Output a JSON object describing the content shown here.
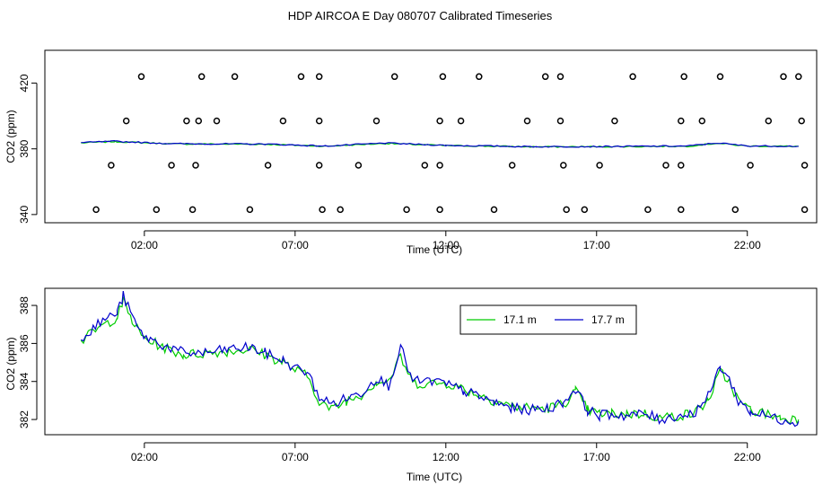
{
  "figure": {
    "title": "HDP AIRCOA E  Day 080707  Calibrated Timeseries",
    "colors": {
      "green": "#00cc00",
      "blue": "#0000cc",
      "black": "#000000"
    }
  },
  "chart_data": [
    {
      "type": "line+scatter",
      "xlabel": "Time (UTC)",
      "ylabel": "CO2 (ppm)",
      "xlim": [
        -1.3,
        24.3
      ],
      "ylim": [
        335,
        440
      ],
      "x_ticks": [
        2,
        7,
        12,
        17,
        22
      ],
      "x_tick_labels": [
        "02:00",
        "07:00",
        "12:00",
        "17:00",
        "22:00"
      ],
      "y_ticks": [
        340,
        380,
        420
      ],
      "y_tick_labels": [
        "340",
        "380",
        "420"
      ],
      "series": [
        {
          "color": "#00cc00",
          "line": [
            [
              -0.1,
              383.6
            ],
            [
              1.0,
              384.4
            ],
            [
              3.0,
              383.0
            ],
            [
              6.0,
              382.8
            ],
            [
              8.0,
              381.6
            ],
            [
              10.0,
              383.3
            ],
            [
              12.0,
              382.0
            ],
            [
              15.0,
              381.2
            ],
            [
              17.0,
              381.3
            ],
            [
              20.0,
              381.6
            ],
            [
              21.0,
              383.4
            ],
            [
              22.0,
              381.7
            ],
            [
              23.7,
              381.5
            ]
          ]
        },
        {
          "color": "#0000cc",
          "line": [
            [
              -0.1,
              383.8
            ],
            [
              1.0,
              384.6
            ],
            [
              3.0,
              383.1
            ],
            [
              6.0,
              382.9
            ],
            [
              8.0,
              381.7
            ],
            [
              10.0,
              383.5
            ],
            [
              12.0,
              382.1
            ],
            [
              15.0,
              381.3
            ],
            [
              17.0,
              381.4
            ],
            [
              20.0,
              381.7
            ],
            [
              21.0,
              383.6
            ],
            [
              22.0,
              381.8
            ],
            [
              23.7,
              381.6
            ]
          ]
        }
      ],
      "markers": {
        "color": "#000000",
        "points": [
          [
            0.4,
            343
          ],
          [
            0.9,
            370
          ],
          [
            1.4,
            397
          ],
          [
            1.9,
            424
          ],
          [
            2.4,
            343
          ],
          [
            2.9,
            370
          ],
          [
            3.4,
            397
          ],
          [
            3.9,
            424
          ],
          [
            3.6,
            343
          ],
          [
            3.7,
            370
          ],
          [
            3.8,
            397
          ],
          [
            4.4,
            397
          ],
          [
            5.0,
            424
          ],
          [
            5.5,
            343
          ],
          [
            6.1,
            370
          ],
          [
            6.6,
            397
          ],
          [
            7.2,
            424
          ],
          [
            7.8,
            424
          ],
          [
            7.8,
            397
          ],
          [
            7.8,
            370
          ],
          [
            7.9,
            343
          ],
          [
            8.5,
            343
          ],
          [
            9.1,
            370
          ],
          [
            9.7,
            397
          ],
          [
            10.3,
            424
          ],
          [
            10.7,
            343
          ],
          [
            11.3,
            370
          ],
          [
            11.9,
            424
          ],
          [
            11.8,
            397
          ],
          [
            11.8,
            370
          ],
          [
            11.8,
            343
          ],
          [
            12.5,
            397
          ],
          [
            13.1,
            424
          ],
          [
            13.6,
            343
          ],
          [
            14.2,
            370
          ],
          [
            14.7,
            397
          ],
          [
            15.3,
            424
          ],
          [
            15.8,
            424
          ],
          [
            15.8,
            397
          ],
          [
            15.9,
            370
          ],
          [
            16.0,
            343
          ],
          [
            16.6,
            343
          ],
          [
            17.1,
            370
          ],
          [
            17.6,
            397
          ],
          [
            18.2,
            424
          ],
          [
            18.7,
            343
          ],
          [
            19.3,
            370
          ],
          [
            19.8,
            397
          ],
          [
            19.9,
            424
          ],
          [
            19.8,
            370
          ],
          [
            19.8,
            343
          ],
          [
            20.5,
            397
          ],
          [
            21.1,
            424
          ],
          [
            21.6,
            343
          ],
          [
            22.1,
            370
          ],
          [
            22.7,
            397
          ],
          [
            23.2,
            424
          ],
          [
            23.7,
            424
          ],
          [
            23.8,
            397
          ],
          [
            23.9,
            370
          ],
          [
            23.9,
            343
          ]
        ]
      }
    },
    {
      "type": "line",
      "xlabel": "Time (UTC)",
      "ylabel": "CO2 (ppm)",
      "xlim": [
        -1.3,
        24.3
      ],
      "ylim": [
        381.2,
        388.9
      ],
      "x_ticks": [
        2,
        7,
        12,
        17,
        22
      ],
      "x_tick_labels": [
        "02:00",
        "07:00",
        "12:00",
        "17:00",
        "22:00"
      ],
      "y_ticks": [
        382,
        384,
        386,
        388
      ],
      "y_tick_labels": [
        "382",
        "384",
        "386",
        "388"
      ],
      "legend": {
        "placement": "top-right-inset"
      },
      "series": [
        {
          "name": "17.1 m",
          "color": "#00cc00",
          "keypoints": [
            [
              -0.1,
              386.1
            ],
            [
              0.3,
              386.6
            ],
            [
              0.7,
              387.0
            ],
            [
              1.1,
              387.4
            ],
            [
              1.3,
              388.2
            ],
            [
              1.6,
              387.2
            ],
            [
              1.9,
              386.4
            ],
            [
              2.2,
              386.1
            ],
            [
              2.8,
              385.7
            ],
            [
              3.3,
              385.4
            ],
            [
              4.1,
              385.5
            ],
            [
              4.8,
              385.6
            ],
            [
              5.5,
              385.7
            ],
            [
              6.0,
              385.4
            ],
            [
              6.6,
              385.0
            ],
            [
              7.0,
              384.6
            ],
            [
              7.4,
              384.3
            ],
            [
              7.8,
              383.0
            ],
            [
              8.2,
              382.5
            ],
            [
              8.7,
              383.0
            ],
            [
              9.2,
              383.3
            ],
            [
              9.7,
              384.0
            ],
            [
              10.1,
              384.0
            ],
            [
              10.5,
              385.3
            ],
            [
              10.9,
              383.9
            ],
            [
              11.3,
              383.9
            ],
            [
              11.7,
              383.9
            ],
            [
              12.1,
              383.9
            ],
            [
              12.6,
              383.6
            ],
            [
              13.1,
              383.3
            ],
            [
              13.6,
              383.0
            ],
            [
              14.2,
              382.7
            ],
            [
              14.8,
              382.6
            ],
            [
              15.4,
              382.6
            ],
            [
              15.9,
              382.8
            ],
            [
              16.3,
              383.5
            ],
            [
              16.7,
              382.5
            ],
            [
              17.1,
              382.3
            ],
            [
              17.5,
              382.3
            ],
            [
              18.0,
              382.3
            ],
            [
              18.6,
              382.3
            ],
            [
              19.1,
              382.1
            ],
            [
              19.7,
              382.2
            ],
            [
              20.2,
              382.3
            ],
            [
              20.7,
              383.0
            ],
            [
              21.1,
              384.5
            ],
            [
              21.4,
              384.0
            ],
            [
              21.7,
              383.0
            ],
            [
              22.1,
              382.5
            ],
            [
              22.6,
              382.3
            ],
            [
              23.1,
              382.1
            ],
            [
              23.7,
              382.0
            ]
          ]
        },
        {
          "name": "17.7 m",
          "color": "#0000cc",
          "keypoints": [
            [
              -0.1,
              386.3
            ],
            [
              0.3,
              386.8
            ],
            [
              0.7,
              387.3
            ],
            [
              1.1,
              387.6
            ],
            [
              1.3,
              388.5
            ],
            [
              1.6,
              387.4
            ],
            [
              1.9,
              386.5
            ],
            [
              2.2,
              386.2
            ],
            [
              2.8,
              385.8
            ],
            [
              3.3,
              385.5
            ],
            [
              4.1,
              385.5
            ],
            [
              4.8,
              385.7
            ],
            [
              5.5,
              385.8
            ],
            [
              6.0,
              385.5
            ],
            [
              6.6,
              385.1
            ],
            [
              7.0,
              384.7
            ],
            [
              7.4,
              384.5
            ],
            [
              7.8,
              383.2
            ],
            [
              8.2,
              382.8
            ],
            [
              8.7,
              383.1
            ],
            [
              9.2,
              383.4
            ],
            [
              9.7,
              384.2
            ],
            [
              10.1,
              383.8
            ],
            [
              10.5,
              385.8
            ],
            [
              10.9,
              384.0
            ],
            [
              11.3,
              384.0
            ],
            [
              11.7,
              384.0
            ],
            [
              12.1,
              383.8
            ],
            [
              12.6,
              383.5
            ],
            [
              13.1,
              383.2
            ],
            [
              13.6,
              382.9
            ],
            [
              14.2,
              382.6
            ],
            [
              14.8,
              382.5
            ],
            [
              15.4,
              382.6
            ],
            [
              15.9,
              382.9
            ],
            [
              16.3,
              383.6
            ],
            [
              16.7,
              382.5
            ],
            [
              17.1,
              382.2
            ],
            [
              17.5,
              382.3
            ],
            [
              18.0,
              382.2
            ],
            [
              18.6,
              382.3
            ],
            [
              19.1,
              382.0
            ],
            [
              19.7,
              382.2
            ],
            [
              20.2,
              382.3
            ],
            [
              20.7,
              383.2
            ],
            [
              21.1,
              384.8
            ],
            [
              21.4,
              384.1
            ],
            [
              21.7,
              383.0
            ],
            [
              22.1,
              382.4
            ],
            [
              22.6,
              382.2
            ],
            [
              23.1,
              382.0
            ],
            [
              23.7,
              381.9
            ]
          ]
        }
      ]
    }
  ]
}
